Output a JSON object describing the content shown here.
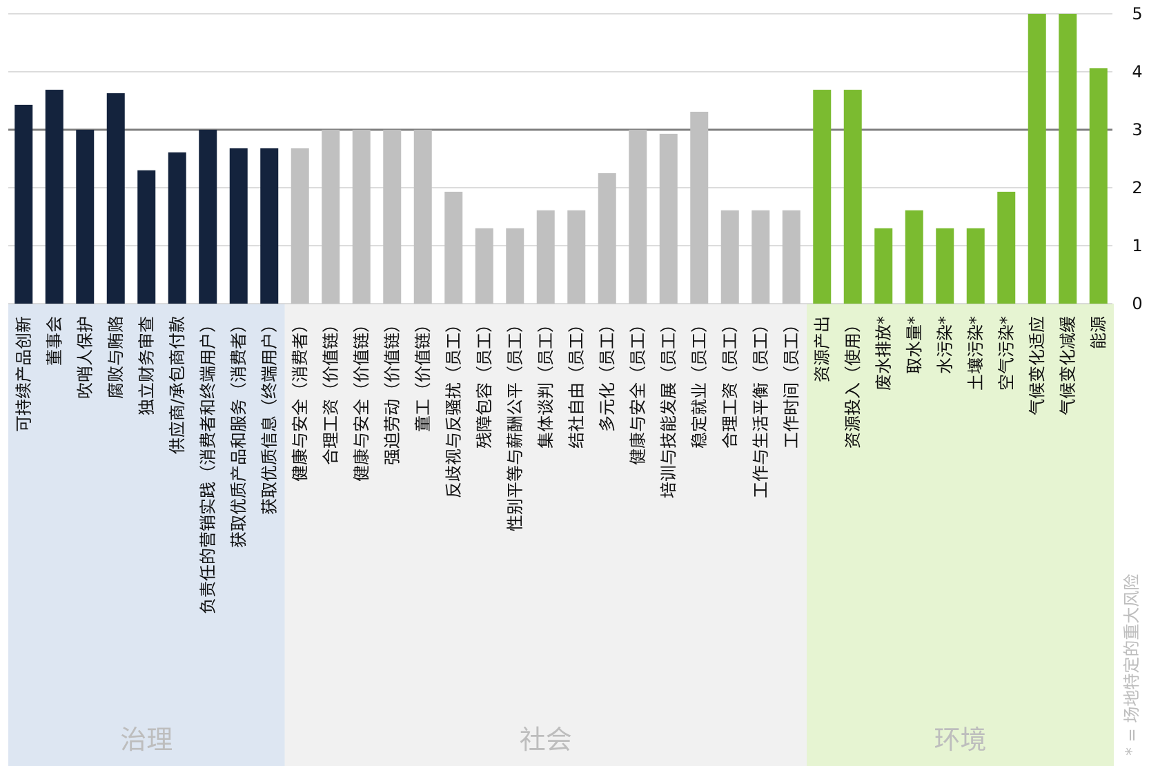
{
  "chart_data": {
    "type": "bar",
    "ylim": [
      0,
      5
    ],
    "yticks": [
      "0",
      "1",
      "2",
      "3",
      "4",
      "5"
    ],
    "reference_line": 3,
    "grid": true,
    "groups": [
      {
        "name": "治理",
        "bar_color": "#14233d",
        "bg_color": "#dde6f2",
        "categories": [
          "可持续产品创新",
          "董事会",
          "吹哨人保护",
          "腐败与贿赂",
          "独立财务审查",
          "供应商/承包商付款",
          "负责任的营销实践（消费者和终端用户）",
          "获取优质产品和服务（消费者）",
          "获取优质信息（终端用户）"
        ],
        "values": [
          3.43,
          3.69,
          3.0,
          3.63,
          2.3,
          2.61,
          3.0,
          2.68,
          2.68
        ]
      },
      {
        "name": "社会",
        "bar_color": "#c0c0c0",
        "bg_color": "#f1f1f1",
        "categories": [
          "健康与安全（消费者）",
          "合理工资（价值链）",
          "健康与安全（价值链）",
          "强迫劳动（价值链）",
          "童工（价值链）",
          "反歧视与反骚扰（员工）",
          "残障包容（员工）",
          "性别平等与薪酬公平（员工）",
          "集体谈判（员工）",
          "结社自由（员工）",
          "多元化（员工）",
          "健康与安全（员工）",
          "培训与技能发展（员工）",
          "稳定就业（员工）",
          "合理工资（员工）",
          "工作与生活平衡（员工）",
          "工作时间（员工）"
        ],
        "values": [
          2.68,
          3.0,
          3.0,
          3.0,
          3.0,
          1.93,
          1.3,
          1.3,
          1.61,
          1.61,
          2.25,
          3.0,
          2.93,
          3.31,
          1.61,
          1.61,
          1.61
        ]
      },
      {
        "name": "环境",
        "bar_color": "#7bbb30",
        "bg_color": "#e6f4d2",
        "categories": [
          "资源产出",
          "资源投入（使用）",
          "废水排放*",
          "取水量*",
          "水污染*",
          "土壤污染*",
          "空气污染*",
          "气候变化适应",
          "气候变化减缓",
          "能源"
        ],
        "values": [
          3.69,
          3.69,
          1.3,
          1.61,
          1.3,
          1.3,
          1.93,
          5.0,
          5.0,
          4.06
        ]
      }
    ]
  },
  "footnote": "* = 场地特定的重大风险"
}
